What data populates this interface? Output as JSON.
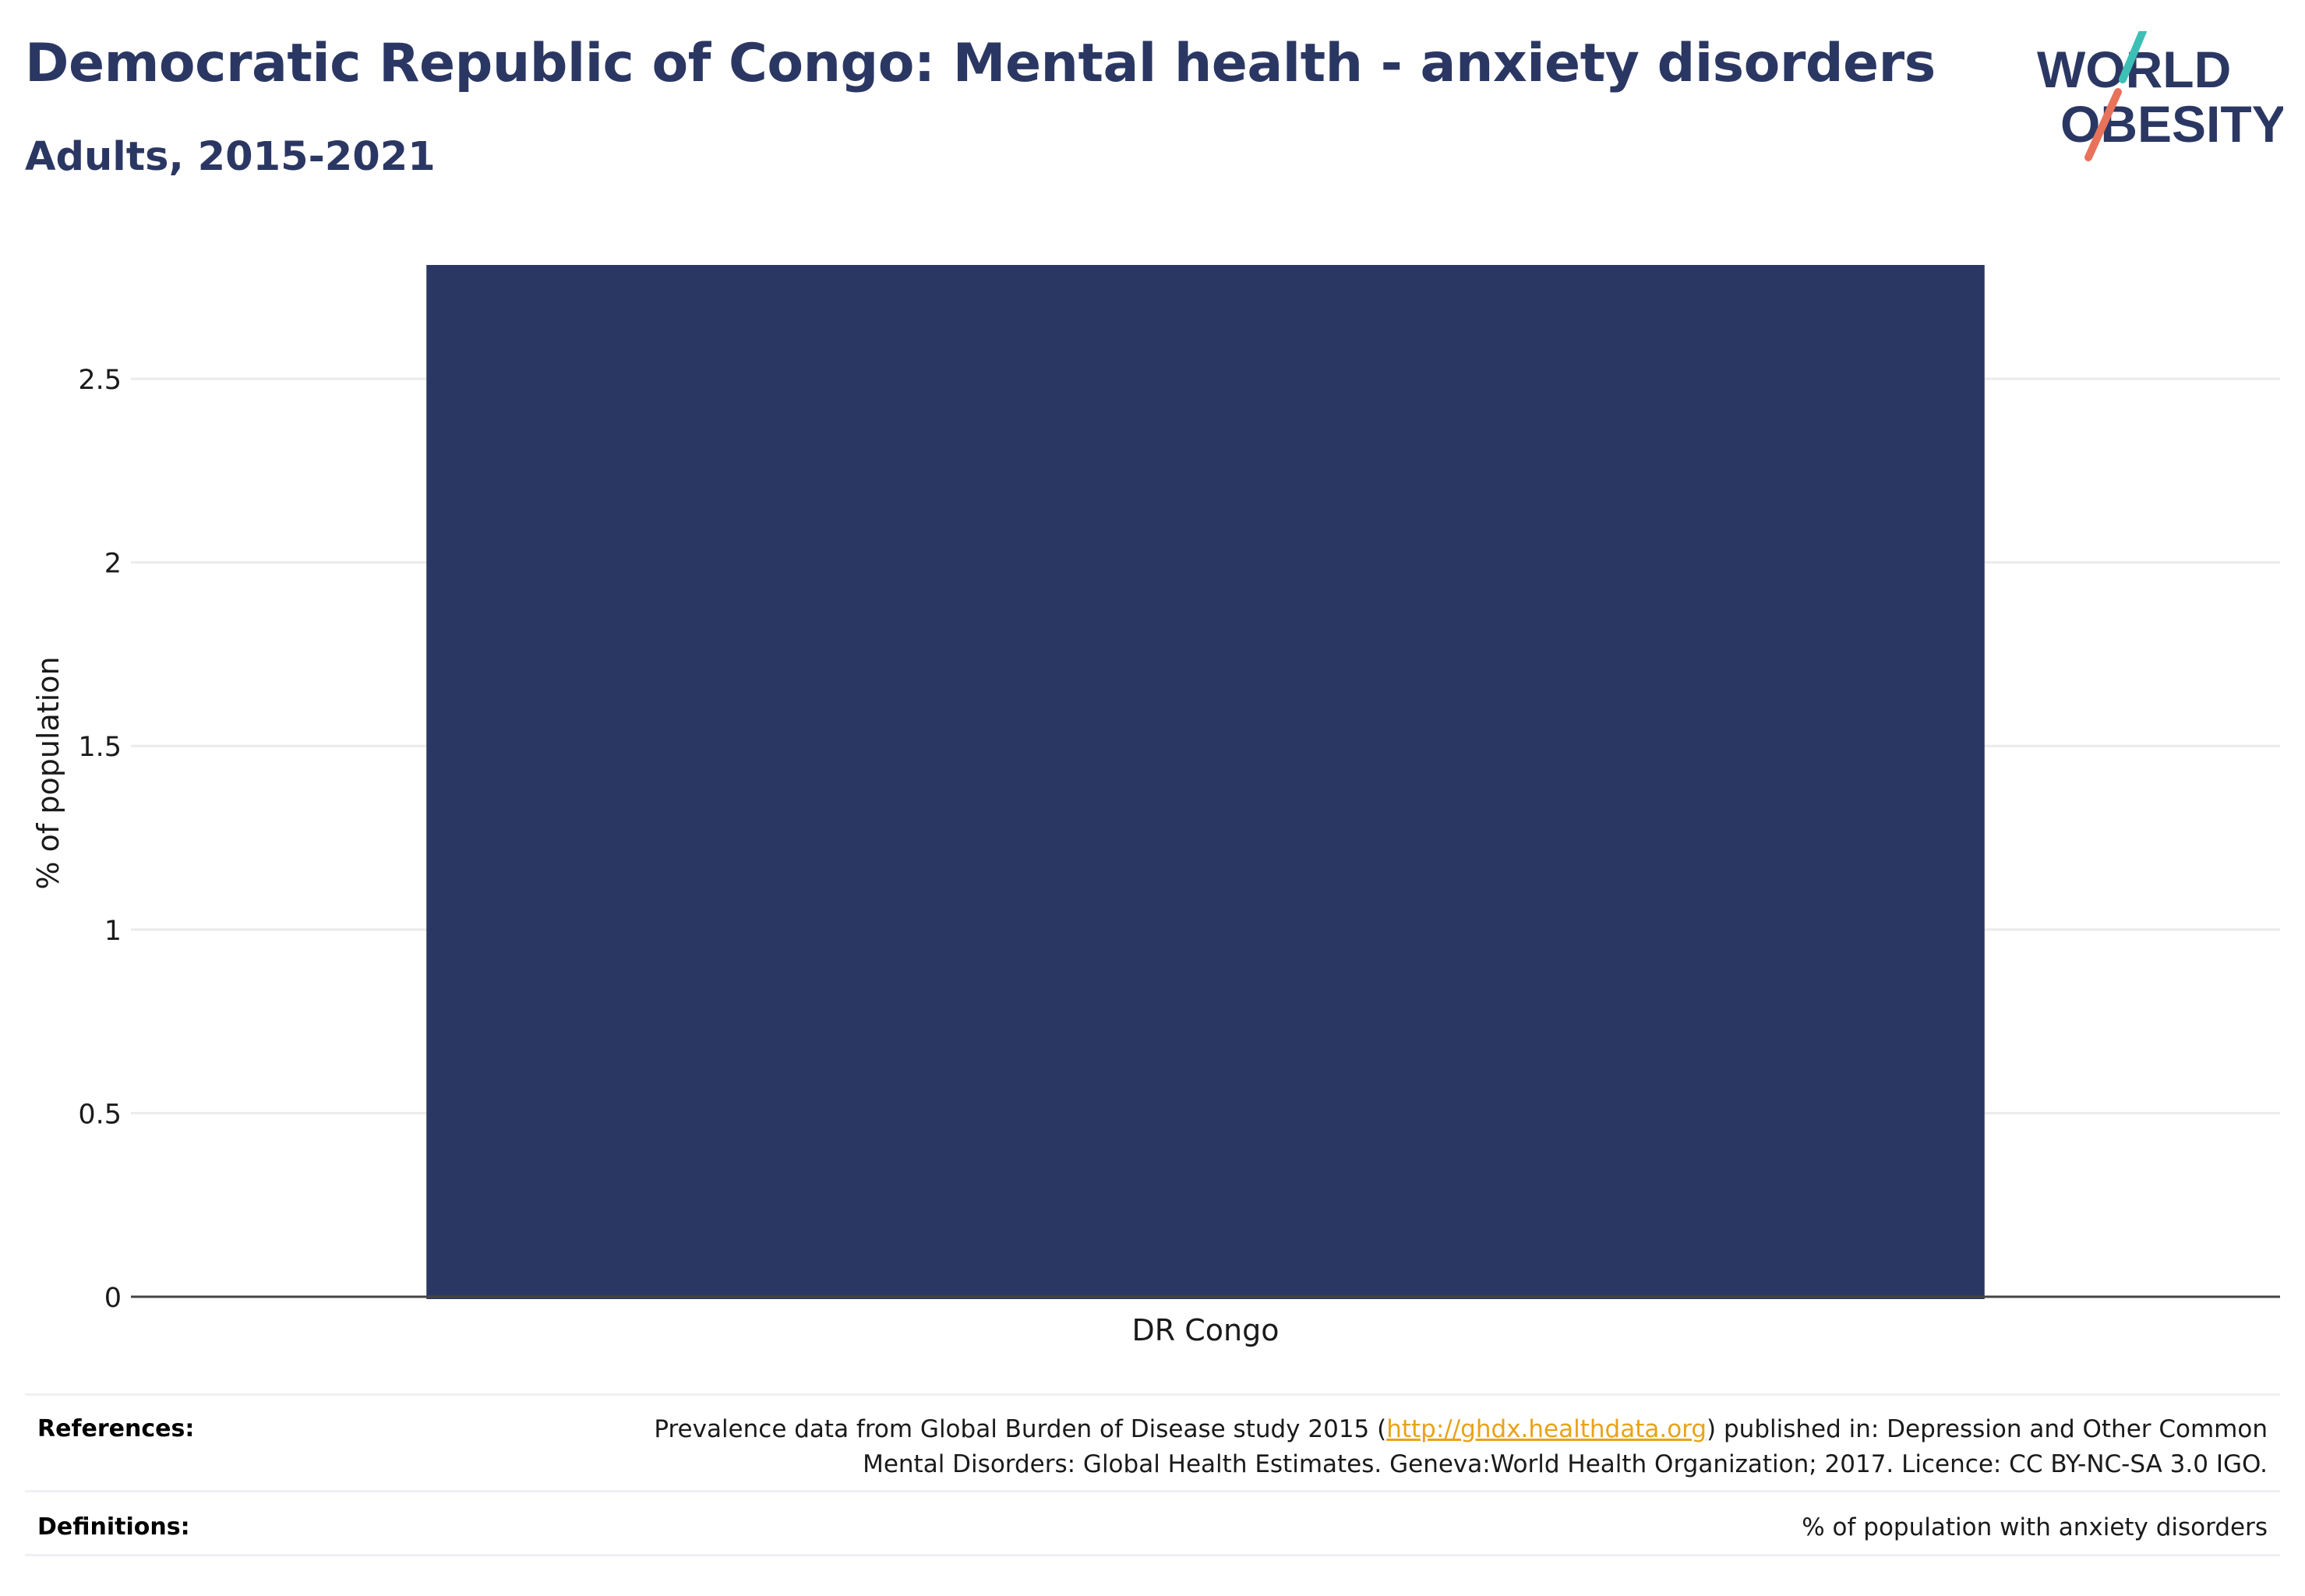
{
  "header": {
    "title": "Democratic Republic of Congo: Mental health - anxiety disorders",
    "subtitle": "Adults, 2015-2021"
  },
  "logo": {
    "line1": "WORLD",
    "line2": "OBESITY",
    "text_color": "#2b3763",
    "slash_top_color": "#3ebfb5",
    "slash_bottom_color": "#e8735a"
  },
  "chart_data": {
    "type": "bar",
    "categories": [
      "DR Congo"
    ],
    "values": [
      2.81
    ],
    "ylabel": "% of population",
    "xlabel": "",
    "ylim": [
      0,
      2.81
    ],
    "yticks": [
      0,
      0.5,
      1,
      1.5,
      2,
      2.5
    ],
    "ytick_labels": [
      "0",
      "0.5",
      "1",
      "1.5",
      "2",
      "2.5"
    ],
    "grid": true,
    "bar_color": "#2b3763"
  },
  "footer": {
    "references_label": "References:",
    "references_line1_pre": "Prevalence data from Global Burden of Disease study 2015 (",
    "references_link": "http://ghdx.healthdata.org",
    "references_line1_post": ") published in: Depression and Other Common",
    "references_line2": "Mental Disorders: Global Health Estimates. Geneva:World Health Organization; 2017. Licence: CC BY-NC-SA 3.0 IGO.",
    "definitions_label": "Definitions:",
    "definitions_text": "% of population with anxiety disorders"
  }
}
